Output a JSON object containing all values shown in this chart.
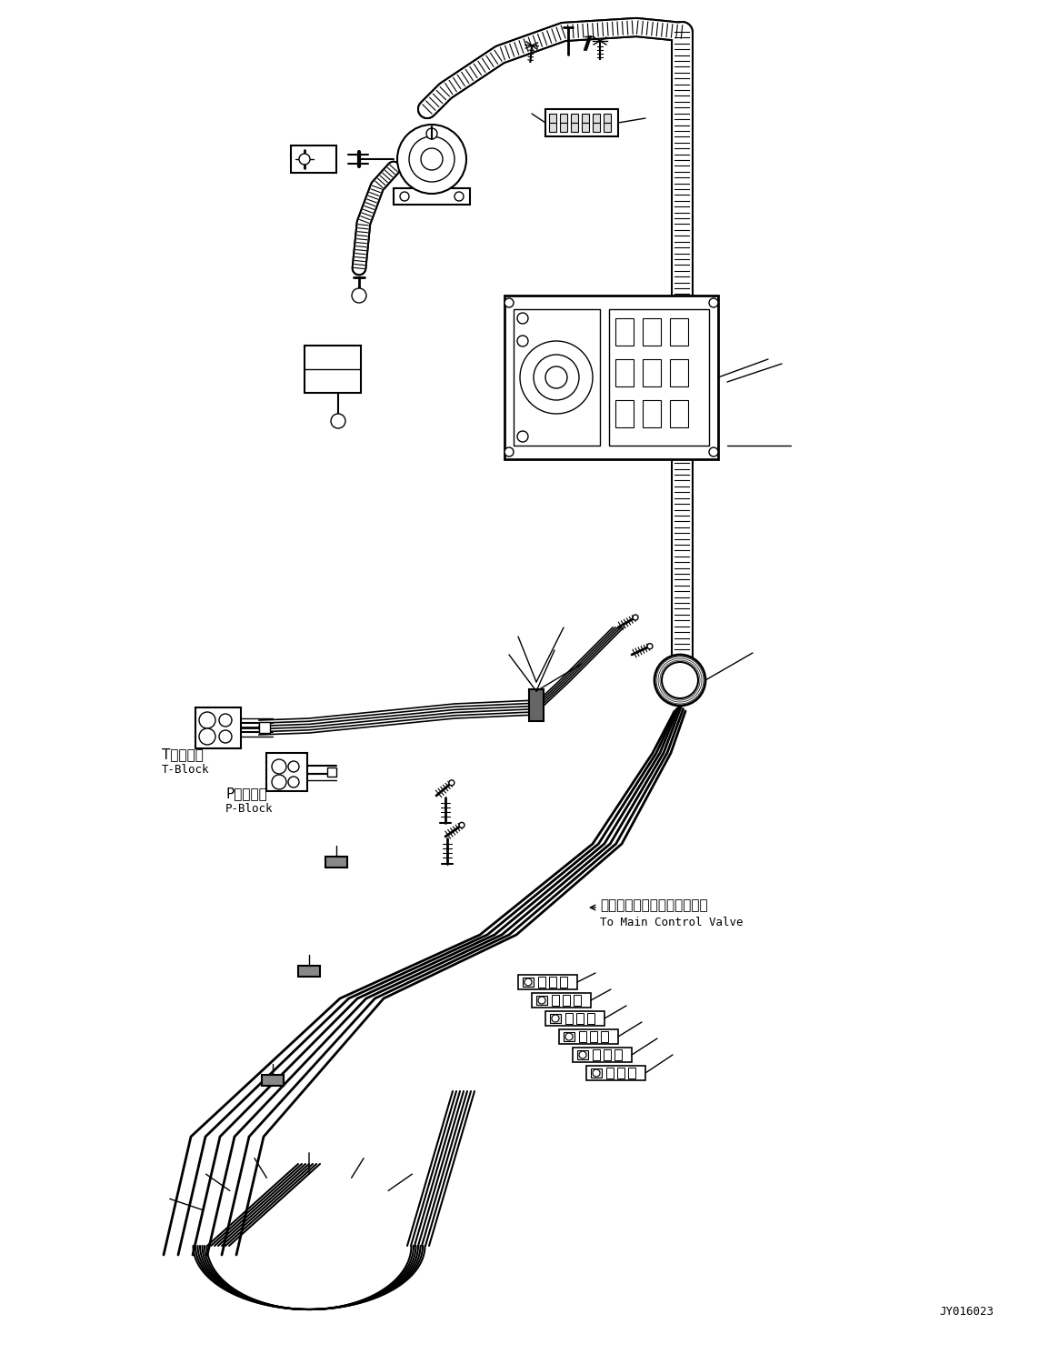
{
  "background_color": "#ffffff",
  "figsize": [
    11.43,
    14.89
  ],
  "dpi": 100,
  "footer_text": "JY016023",
  "labels": {
    "t_block_jp": "Tブロック",
    "t_block_en": "T-Block",
    "p_block_jp": "Pブロック",
    "p_block_en": "P-Block",
    "valve_jp": "メインコントロールバルブへ",
    "valve_en": "To Main Control Valve"
  }
}
